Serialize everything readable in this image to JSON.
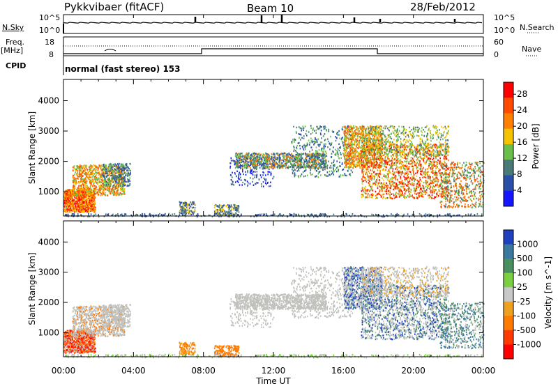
{
  "header": {
    "title": "Pykkvibaer (fitACF)",
    "beam": "Beam 10",
    "date": "28/Feb/2012"
  },
  "status_panel": {
    "nsky_label": "N.Sky",
    "nsearch_label": "N.Search",
    "freq_label": "Freq.",
    "freq_unit": "[MHz]",
    "nave_label": "Nave",
    "cpid_label": "CPID",
    "cpid_value": "normal (fast stereo) 153",
    "noise_ticks": [
      "10^5",
      "10^0"
    ],
    "freq_ticks": [
      "18",
      "8"
    ],
    "nave_ticks": [
      "60",
      "0"
    ]
  },
  "chart_data": [
    {
      "type": "heatmap",
      "title": "",
      "xlabel": "Time UT",
      "ylabel": "Slant Range [km]",
      "x_ticks": [
        "00:00",
        "04:00",
        "08:00",
        "12:00",
        "16:00",
        "20:00",
        "00:00"
      ],
      "y_ticks": [
        1000,
        2000,
        3000,
        4000
      ],
      "ylim": [
        200,
        4700
      ],
      "grid": false,
      "colorbar": {
        "label": "Power [dB]",
        "ticks": [
          4,
          8,
          12,
          16,
          20,
          24,
          28
        ],
        "range": [
          0,
          31
        ],
        "colors": [
          "#1515ff",
          "#2a4fa8",
          "#4a7a78",
          "#6abf4b",
          "#f5c400",
          "#ff8000",
          "#ff4a00",
          "#ff0000"
        ]
      }
    },
    {
      "type": "heatmap",
      "title": "",
      "xlabel": "Time UT",
      "ylabel": "Slant Range [km]",
      "x_ticks": [
        "00:00",
        "04:00",
        "08:00",
        "12:00",
        "16:00",
        "20:00",
        "00:00"
      ],
      "y_ticks": [
        1000,
        2000,
        3000,
        4000
      ],
      "ylim": [
        200,
        4700
      ],
      "grid": false,
      "colorbar": {
        "label": "Velocity [m s^-1]",
        "ticks": [
          "1000",
          "500",
          "100",
          "25",
          "-25",
          "-100",
          "-500",
          "-1000"
        ],
        "colors": [
          "#2040c0",
          "#3a78a0",
          "#4a8f60",
          "#7ad040",
          "#c8c8c8",
          "#f0a020",
          "#ff7a00",
          "#ff3a00",
          "#ff0000"
        ]
      }
    }
  ],
  "colors": {
    "gs_gray": "#c0c0bc",
    "axis": "#000000"
  }
}
